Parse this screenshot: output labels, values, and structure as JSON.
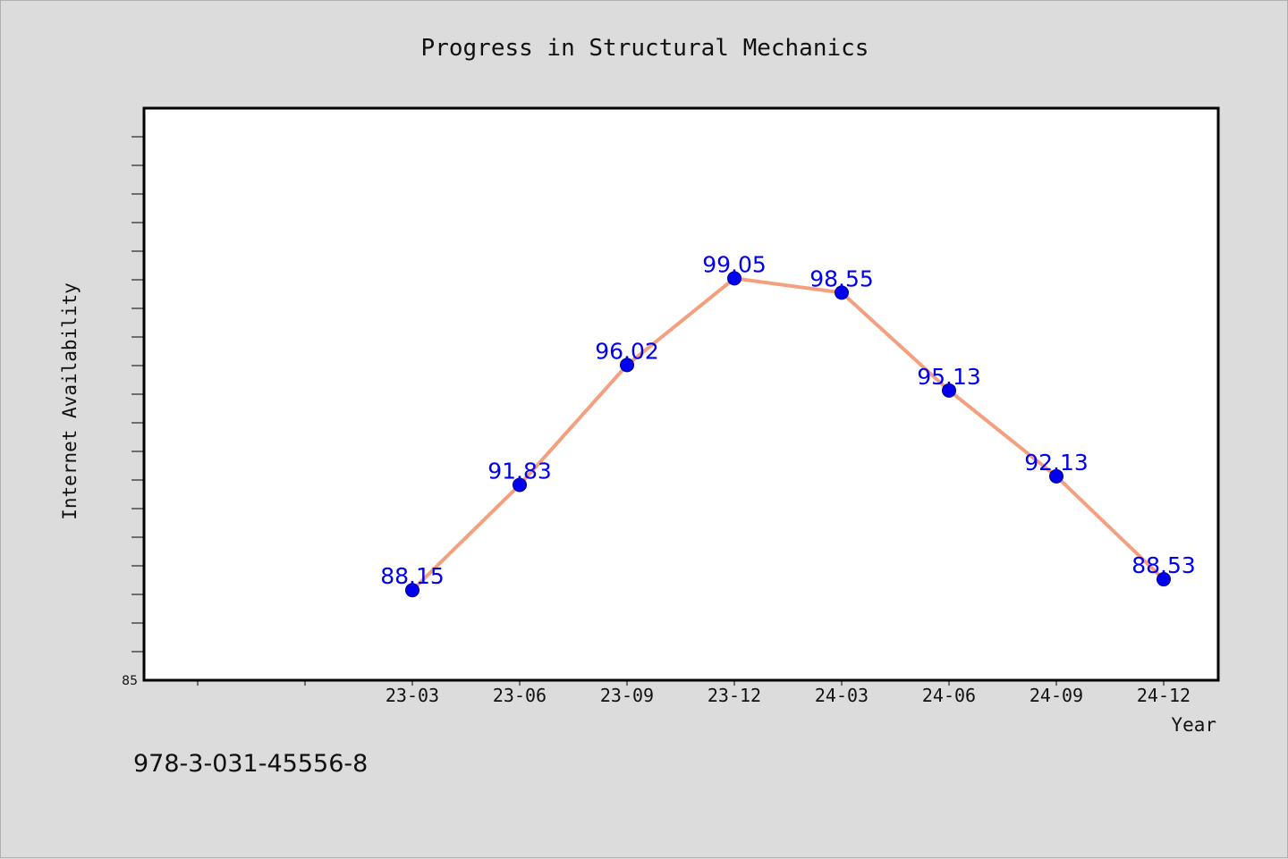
{
  "chart_data": {
    "type": "line",
    "title": "Progress in Structural Mechanics",
    "xlabel": "Year",
    "ylabel": "Internet Availability",
    "categories": [
      "23-03",
      "23-06",
      "23-09",
      "23-12",
      "24-03",
      "24-06",
      "24-09",
      "24-12"
    ],
    "series": [
      {
        "values": [
          88.15,
          91.83,
          96.02,
          99.05,
          98.55,
          95.13,
          92.13,
          88.53
        ],
        "line_color": "#f4a07e",
        "marker_color": "#0000ee",
        "label_color": "#0000ee"
      }
    ],
    "ylim": [
      85,
      105
    ],
    "y_tick_labels": [
      "85"
    ],
    "grid": false,
    "legend": "none"
  },
  "footer": {
    "isbn": "978-3-031-45556-8"
  }
}
